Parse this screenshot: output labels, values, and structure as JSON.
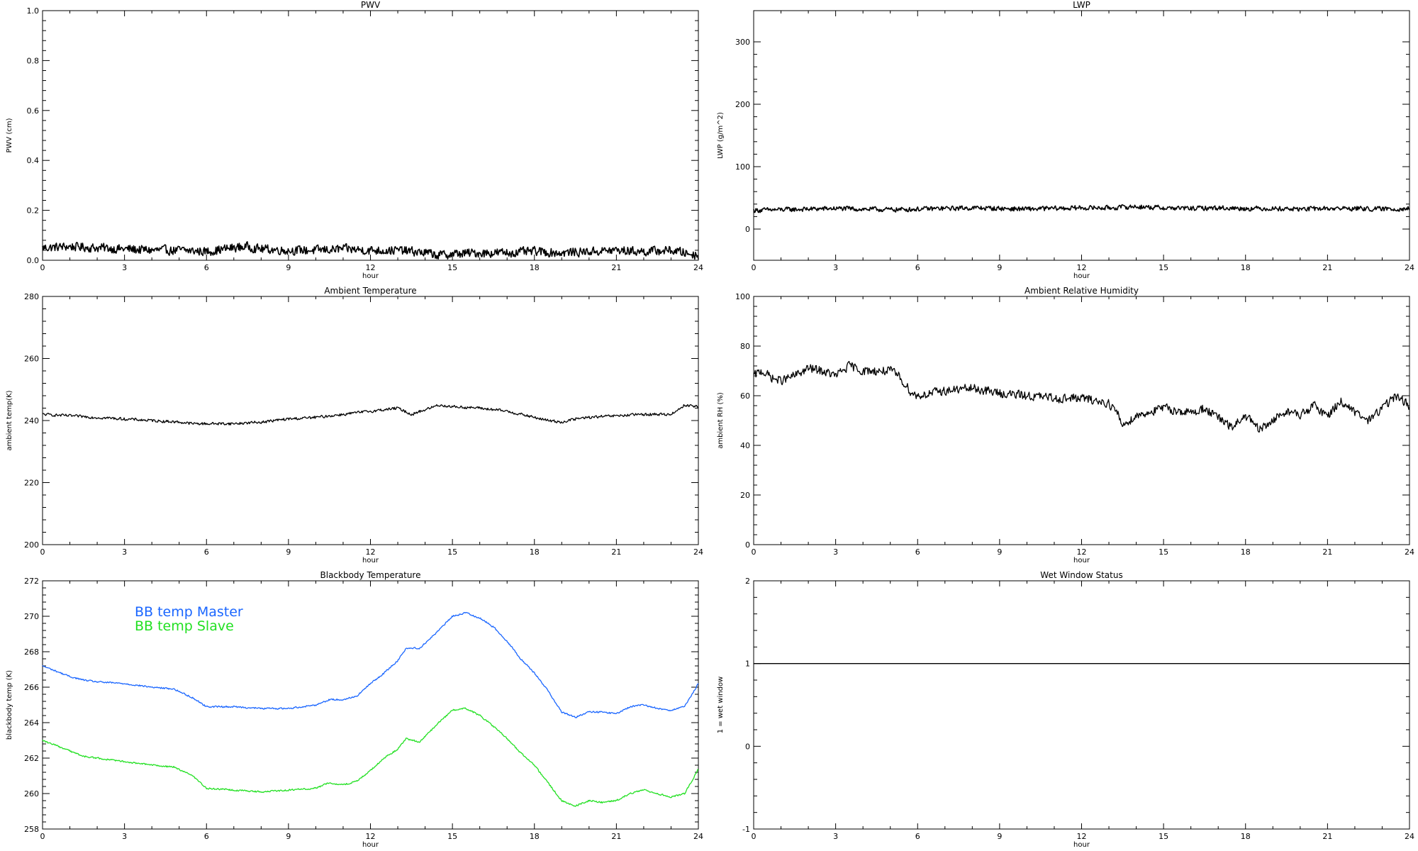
{
  "chart_data": [
    {
      "type": "line",
      "title": "PWV",
      "xlabel": "hour",
      "ylabel": "PWV (cm)",
      "xlim": [
        0,
        24
      ],
      "ylim": [
        0,
        1.0
      ],
      "x_ticks": [
        0,
        3,
        6,
        9,
        12,
        15,
        18,
        21,
        24
      ],
      "y_ticks": [
        "0.0",
        "0.2",
        "0.4",
        "0.6",
        "0.8",
        "1.0"
      ],
      "series": [
        {
          "color": "#000000",
          "noise": 0.012,
          "x": [
            0,
            1,
            2,
            3,
            4,
            5,
            6,
            7,
            7.5,
            8,
            9,
            10,
            11,
            12,
            13,
            14,
            14.5,
            15,
            16,
            17,
            18,
            19,
            20,
            21,
            22,
            23,
            24
          ],
          "y": [
            0.05,
            0.055,
            0.05,
            0.045,
            0.04,
            0.04,
            0.035,
            0.05,
            0.055,
            0.045,
            0.04,
            0.04,
            0.045,
            0.04,
            0.04,
            0.03,
            0.02,
            0.025,
            0.03,
            0.03,
            0.035,
            0.03,
            0.035,
            0.04,
            0.035,
            0.04,
            0.02
          ]
        }
      ]
    },
    {
      "type": "line",
      "title": "LWP",
      "xlabel": "hour",
      "ylabel": "LWP (g/m^2)",
      "xlim": [
        0,
        24
      ],
      "ylim": [
        -50,
        350
      ],
      "x_ticks": [
        0,
        3,
        6,
        9,
        12,
        15,
        18,
        21,
        24
      ],
      "y_ticks": [
        "0",
        "100",
        "200",
        "300"
      ],
      "series": [
        {
          "color": "#000000",
          "noise": 2.5,
          "x": [
            0,
            1,
            2,
            3,
            4,
            5,
            6,
            7,
            8,
            9,
            10,
            11,
            12,
            13,
            14,
            15,
            16,
            17,
            18,
            19,
            20,
            21,
            22,
            23,
            24
          ],
          "y": [
            30,
            31,
            32,
            33,
            32,
            31,
            32,
            33,
            34,
            33,
            32,
            33,
            34,
            34,
            36,
            34,
            33,
            34,
            33,
            33,
            32,
            33,
            33,
            32,
            33
          ]
        }
      ]
    },
    {
      "type": "line",
      "title": "Ambient Temperature",
      "xlabel": "hour",
      "ylabel": "ambient temp(K)",
      "xlim": [
        0,
        24
      ],
      "ylim": [
        200,
        280
      ],
      "x_ticks": [
        0,
        3,
        6,
        9,
        12,
        15,
        18,
        21,
        24
      ],
      "y_ticks": [
        "200",
        "220",
        "240",
        "260",
        "280"
      ],
      "series": [
        {
          "color": "#000000",
          "noise": 0.3,
          "x": [
            0,
            1,
            2,
            3,
            4,
            5,
            5.5,
            6,
            7,
            8,
            9,
            10,
            11,
            12,
            13,
            13.5,
            14,
            14.5,
            15,
            16,
            17,
            18,
            18.5,
            19,
            19.5,
            20,
            21,
            22,
            23,
            23.5,
            24
          ],
          "y": [
            242,
            241.5,
            241,
            240.5,
            240,
            239.5,
            239,
            239,
            239,
            239.5,
            240.5,
            241,
            242,
            243,
            244,
            242,
            243.5,
            245,
            244.5,
            244,
            243,
            241,
            240,
            239.5,
            240.5,
            241,
            241.5,
            242,
            242,
            245,
            244.5
          ]
        }
      ]
    },
    {
      "type": "line",
      "title": "Ambient Relative Humidity",
      "xlabel": "hour",
      "ylabel": "ambient RH (%)",
      "xlim": [
        0,
        24
      ],
      "ylim": [
        0,
        100
      ],
      "x_ticks": [
        0,
        3,
        6,
        9,
        12,
        15,
        18,
        21,
        24
      ],
      "y_ticks": [
        "0",
        "20",
        "40",
        "60",
        "80",
        "100"
      ],
      "series": [
        {
          "color": "#000000",
          "noise": 1.2,
          "x": [
            0,
            0.3,
            0.7,
            1,
            1.5,
            2,
            2.5,
            3,
            3.5,
            4,
            5,
            5.3,
            5.8,
            6,
            7,
            8,
            9,
            10,
            11,
            12,
            13,
            13.3,
            13.5,
            14,
            15,
            16,
            16.5,
            17,
            17.5,
            18,
            18.5,
            19,
            19.5,
            20,
            20.5,
            21,
            21.5,
            22,
            22.5,
            23,
            23.5,
            24
          ],
          "y": [
            68,
            70,
            67,
            66,
            68,
            71,
            70,
            68,
            72,
            70,
            70,
            68,
            61,
            60,
            62,
            63,
            61,
            60,
            59,
            59,
            57,
            53,
            48,
            52,
            55,
            53,
            55,
            51,
            47,
            52,
            46,
            50,
            54,
            52,
            56,
            52,
            58,
            53,
            50,
            55,
            60,
            56
          ]
        }
      ]
    },
    {
      "type": "line",
      "title": "Blackbody Temperature",
      "xlabel": "hour",
      "ylabel": "blackbody temp (K)",
      "xlim": [
        0,
        24
      ],
      "ylim": [
        258,
        272
      ],
      "x_ticks": [
        0,
        3,
        6,
        9,
        12,
        15,
        18,
        21,
        24
      ],
      "y_ticks": [
        "258",
        "260",
        "262",
        "264",
        "266",
        "268",
        "270",
        "272"
      ],
      "legend": {
        "position": "top-left"
      },
      "series": [
        {
          "name": "BB temp Master",
          "color": "#1a66ff",
          "noise": 0.03,
          "x": [
            0,
            0.5,
            1,
            1.5,
            2,
            3,
            4,
            4.8,
            5.5,
            6,
            7,
            8,
            9,
            10,
            10.5,
            11,
            11.5,
            12,
            12.5,
            13,
            13.3,
            13.8,
            14.5,
            15,
            15.5,
            16,
            16.5,
            17,
            17.5,
            18,
            18.5,
            19,
            19.5,
            20,
            20.5,
            21,
            21.5,
            22,
            22.5,
            23,
            23.5,
            24
          ],
          "y": [
            267.2,
            266.9,
            266.6,
            266.4,
            266.3,
            266.2,
            266.0,
            265.9,
            265.4,
            264.9,
            264.9,
            264.8,
            264.8,
            265.0,
            265.3,
            265.3,
            265.5,
            266.2,
            266.8,
            267.5,
            268.2,
            268.2,
            269.2,
            270.0,
            270.2,
            269.9,
            269.4,
            268.6,
            267.6,
            266.8,
            265.8,
            264.6,
            264.3,
            264.6,
            264.6,
            264.5,
            264.9,
            265.0,
            264.8,
            264.7,
            264.9,
            266.2
          ]
        },
        {
          "name": "BB temp Slave",
          "color": "#22e022",
          "noise": 0.03,
          "x": [
            0,
            0.5,
            1,
            1.5,
            2,
            3,
            4,
            4.8,
            5.5,
            6,
            7,
            8,
            9,
            10,
            10.5,
            11,
            11.5,
            12,
            12.5,
            13,
            13.3,
            13.8,
            14.5,
            15,
            15.5,
            16,
            16.5,
            17,
            17.5,
            18,
            18.5,
            19,
            19.5,
            20,
            20.5,
            21,
            21.5,
            22,
            22.5,
            23,
            23.5,
            24
          ],
          "y": [
            263.0,
            262.7,
            262.4,
            262.1,
            262.0,
            261.8,
            261.6,
            261.5,
            261.0,
            260.3,
            260.2,
            260.1,
            260.2,
            260.3,
            260.6,
            260.5,
            260.7,
            261.3,
            262.0,
            262.5,
            263.1,
            262.9,
            264.0,
            264.7,
            264.8,
            264.4,
            263.8,
            263.1,
            262.3,
            261.6,
            260.6,
            259.6,
            259.3,
            259.6,
            259.5,
            259.6,
            260.0,
            260.2,
            260.0,
            259.8,
            260.0,
            261.4
          ]
        }
      ]
    },
    {
      "type": "line",
      "title": "Wet Window Status",
      "xlabel": "hour",
      "ylabel": "1 = wet window",
      "xlim": [
        0,
        24
      ],
      "ylim": [
        -1,
        2
      ],
      "x_ticks": [
        0,
        3,
        6,
        9,
        12,
        15,
        18,
        21,
        24
      ],
      "y_ticks": [
        "-1",
        "0",
        "1",
        "2"
      ],
      "series": [
        {
          "color": "#000000",
          "noise": 0,
          "x": [
            0,
            24
          ],
          "y": [
            1,
            1
          ]
        }
      ]
    }
  ]
}
